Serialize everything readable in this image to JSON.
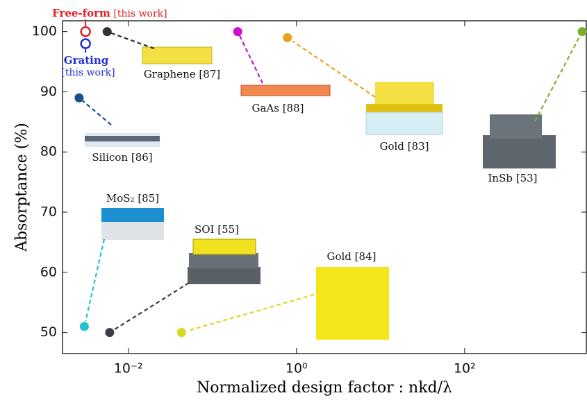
{
  "chart_data": {
    "type": "scatter",
    "y_label": "Absorptance (%)",
    "x_label": "Normalized design factor : nkd/λ",
    "xscale": "log",
    "xlim": [
      0.00165,
      2800
    ],
    "ylim": [
      46.5,
      101.8
    ],
    "xticks": [
      {
        "value": 0.01,
        "label": "10⁻²"
      },
      {
        "value": 1,
        "label": "10⁰"
      },
      {
        "value": 100,
        "label": "10²"
      }
    ],
    "yticks": [
      50,
      60,
      70,
      80,
      90,
      100
    ],
    "points": [
      {
        "label": "Free-form",
        "note": "[this work]",
        "x": 0.0031,
        "y": 100,
        "color": "#e02020",
        "hollow": true
      },
      {
        "label": "Grating",
        "note": "[this work]",
        "x": 0.0031,
        "y": 98,
        "color": "#2030d0",
        "hollow": true
      },
      {
        "label": "Graphene [87]",
        "x": 0.0056,
        "y": 100,
        "color": "#333333"
      },
      {
        "label": "Silicon [86]",
        "x": 0.0026,
        "y": 89,
        "color": "#1a4f8a"
      },
      {
        "label": "MoS₂ [85]",
        "x": 0.003,
        "y": 51,
        "color": "#22c4cc"
      },
      {
        "label": "SOI [55]",
        "x": 0.006,
        "y": 50,
        "color": "#3a3f47"
      },
      {
        "label": "Gold [84]",
        "x": 0.043,
        "y": 50,
        "color": "#d8d820"
      },
      {
        "label": "GaAs [88]",
        "x": 0.2,
        "y": 100,
        "color": "#cc10cc"
      },
      {
        "label": "Gold [83]",
        "x": 0.78,
        "y": 99,
        "color": "#e8a020"
      },
      {
        "label": "InSb [53]",
        "x": 2500,
        "y": 100,
        "color": "#7ab030"
      }
    ]
  }
}
